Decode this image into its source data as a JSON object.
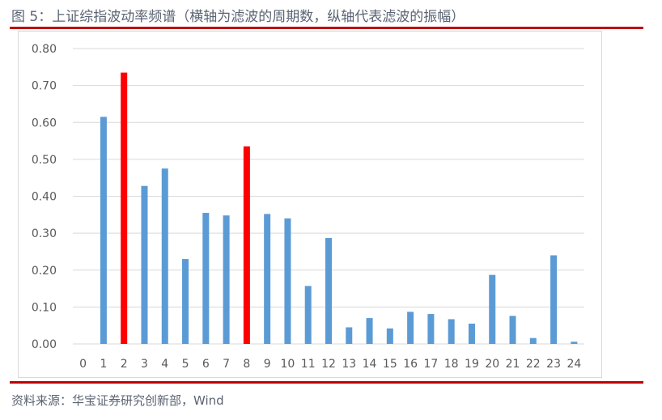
{
  "figure": {
    "title": "图 5：上证综指波动率频谱（横轴为滤波的周期数，纵轴代表滤波的振幅）",
    "source": "资料来源：华宝证券研究创新部，Wind"
  },
  "colors": {
    "rule": "#c00000",
    "bar_default": "#5b9bd5",
    "bar_highlight": "#ff0000",
    "grid": "#d9d9d9",
    "axis_text": "#595959"
  },
  "chart_data": {
    "type": "bar",
    "categories": [
      "0",
      "1",
      "2",
      "3",
      "4",
      "5",
      "6",
      "7",
      "8",
      "9",
      "10",
      "11",
      "12",
      "13",
      "14",
      "15",
      "16",
      "17",
      "18",
      "19",
      "20",
      "21",
      "22",
      "23",
      "24"
    ],
    "values": [
      0.0,
      0.615,
      0.735,
      0.428,
      0.475,
      0.23,
      0.355,
      0.348,
      0.535,
      0.352,
      0.34,
      0.157,
      0.287,
      0.045,
      0.07,
      0.042,
      0.087,
      0.081,
      0.067,
      0.055,
      0.187,
      0.076,
      0.016,
      0.24,
      0.006
    ],
    "highlight_categories": [
      "2",
      "8"
    ],
    "ylim": [
      0,
      0.8
    ],
    "yticks": [
      "0.00",
      "0.10",
      "0.20",
      "0.30",
      "0.40",
      "0.50",
      "0.60",
      "0.70",
      "0.80"
    ],
    "grid": true,
    "legend": "none",
    "title": "",
    "xlabel": "",
    "ylabel": ""
  }
}
